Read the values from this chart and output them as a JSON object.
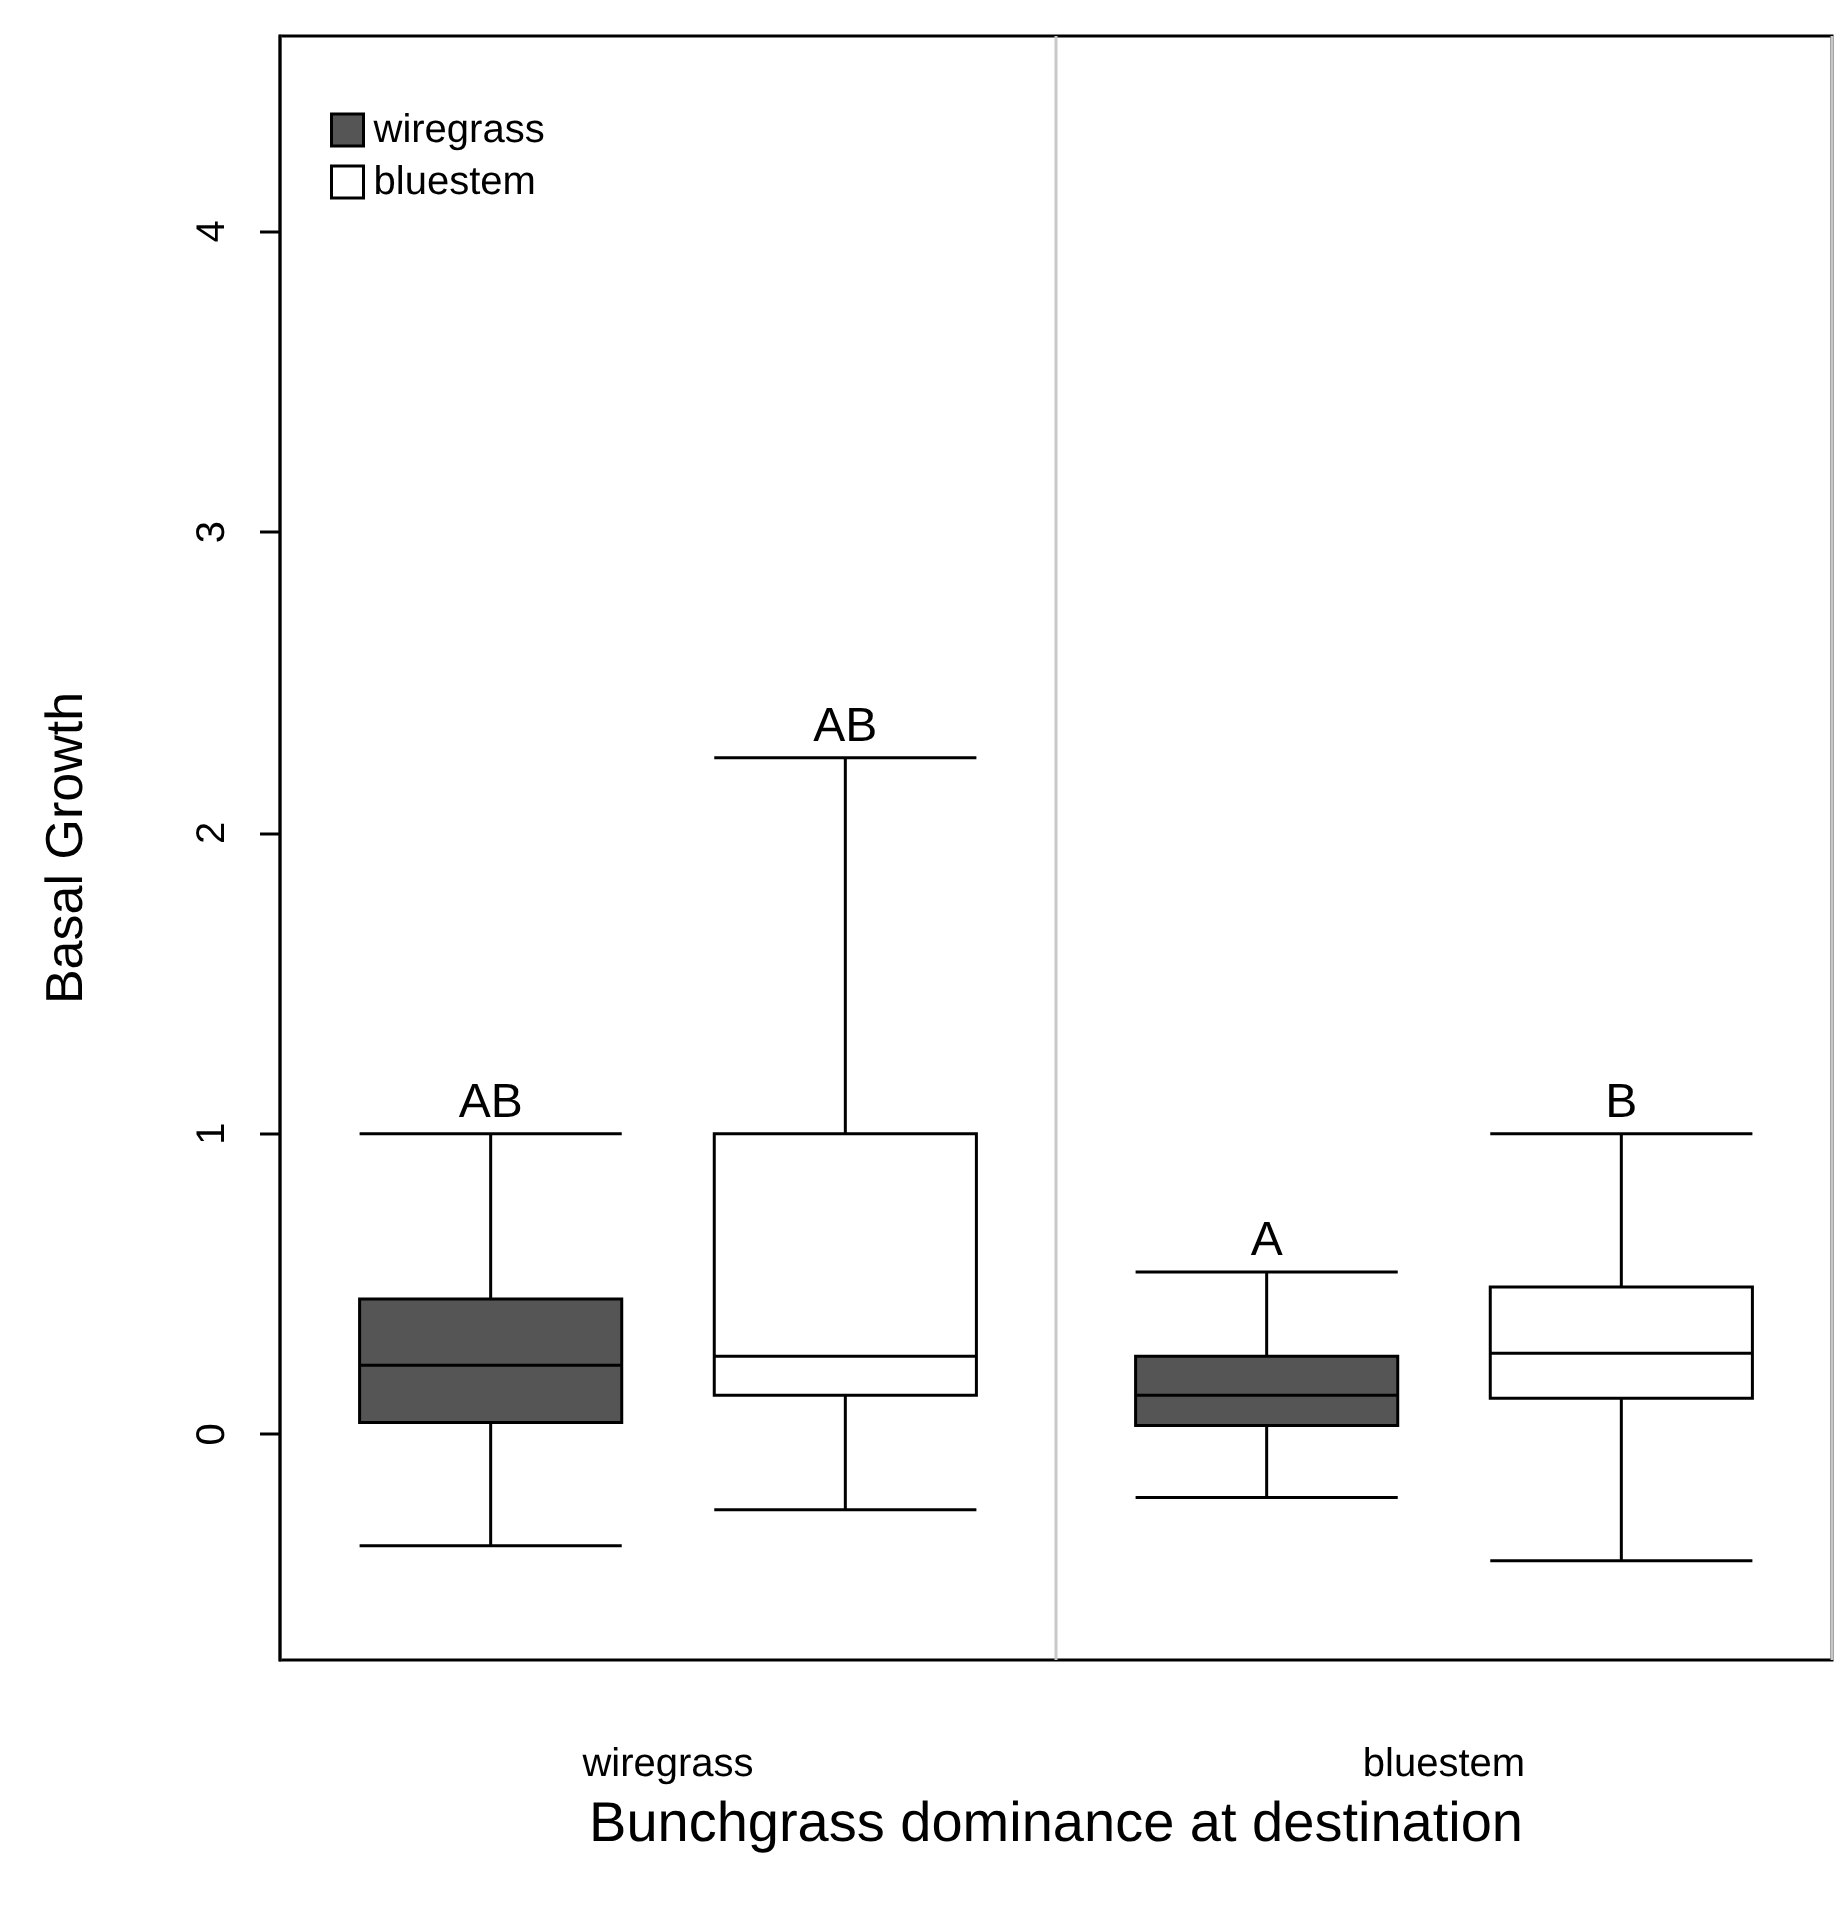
{
  "chart_data": {
    "type": "box",
    "xlabel": "Bunchgrass dominance at destination",
    "ylabel": "Basal Growth",
    "categories": [
      "wiregrass",
      "bluestem"
    ],
    "series": [
      {
        "name": "wiregrass",
        "color": "#555555",
        "boxes": [
          {
            "low": -0.37,
            "q1": 0.04,
            "median": 0.23,
            "q3": 0.45,
            "high": 1.0
          },
          {
            "low": -0.21,
            "q1": 0.03,
            "median": 0.13,
            "q3": 0.26,
            "high": 0.54
          }
        ]
      },
      {
        "name": "bluestem",
        "color": "#ffffff",
        "boxes": [
          {
            "low": -0.25,
            "q1": 0.13,
            "median": 0.26,
            "q3": 1.0,
            "high": 2.25
          },
          {
            "low": -0.42,
            "q1": 0.12,
            "median": 0.27,
            "q3": 0.49,
            "high": 1.0
          }
        ]
      }
    ],
    "ylim": [
      -0.75,
      4.65
    ],
    "yticks": [
      0,
      1,
      2,
      3,
      4
    ],
    "grid": "x",
    "legend": "top left",
    "annotations": [
      "AB",
      "AB",
      "A",
      "B"
    ]
  }
}
